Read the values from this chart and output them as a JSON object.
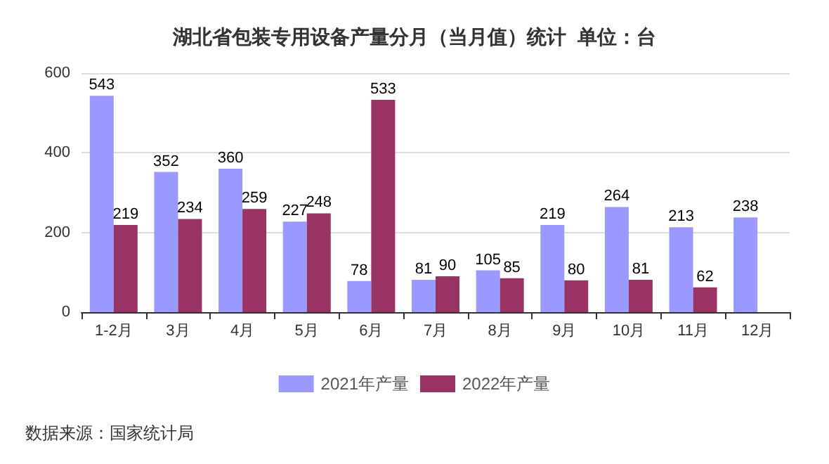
{
  "chart_data": {
    "type": "bar",
    "title": "湖北省包装专用设备产量分月（当月值）统计  单位：台",
    "categories": [
      "1-2月",
      "3月",
      "4月",
      "5月",
      "6月",
      "7月",
      "8月",
      "9月",
      "10月",
      "11月",
      "12月"
    ],
    "series": [
      {
        "name": "2021年产量",
        "color": "#9999ff",
        "values": [
          543,
          352,
          360,
          227,
          78,
          81,
          105,
          219,
          264,
          213,
          238
        ]
      },
      {
        "name": "2022年产量",
        "color": "#993366",
        "values": [
          219,
          234,
          259,
          248,
          533,
          90,
          85,
          80,
          81,
          62,
          null
        ]
      }
    ],
    "ylim": [
      0,
      600
    ],
    "yticks": [
      0,
      200,
      400,
      600
    ],
    "grid": "y",
    "legend": "bottom",
    "data_labels": true,
    "annotations": [
      "数据来源：国家统计局"
    ]
  }
}
